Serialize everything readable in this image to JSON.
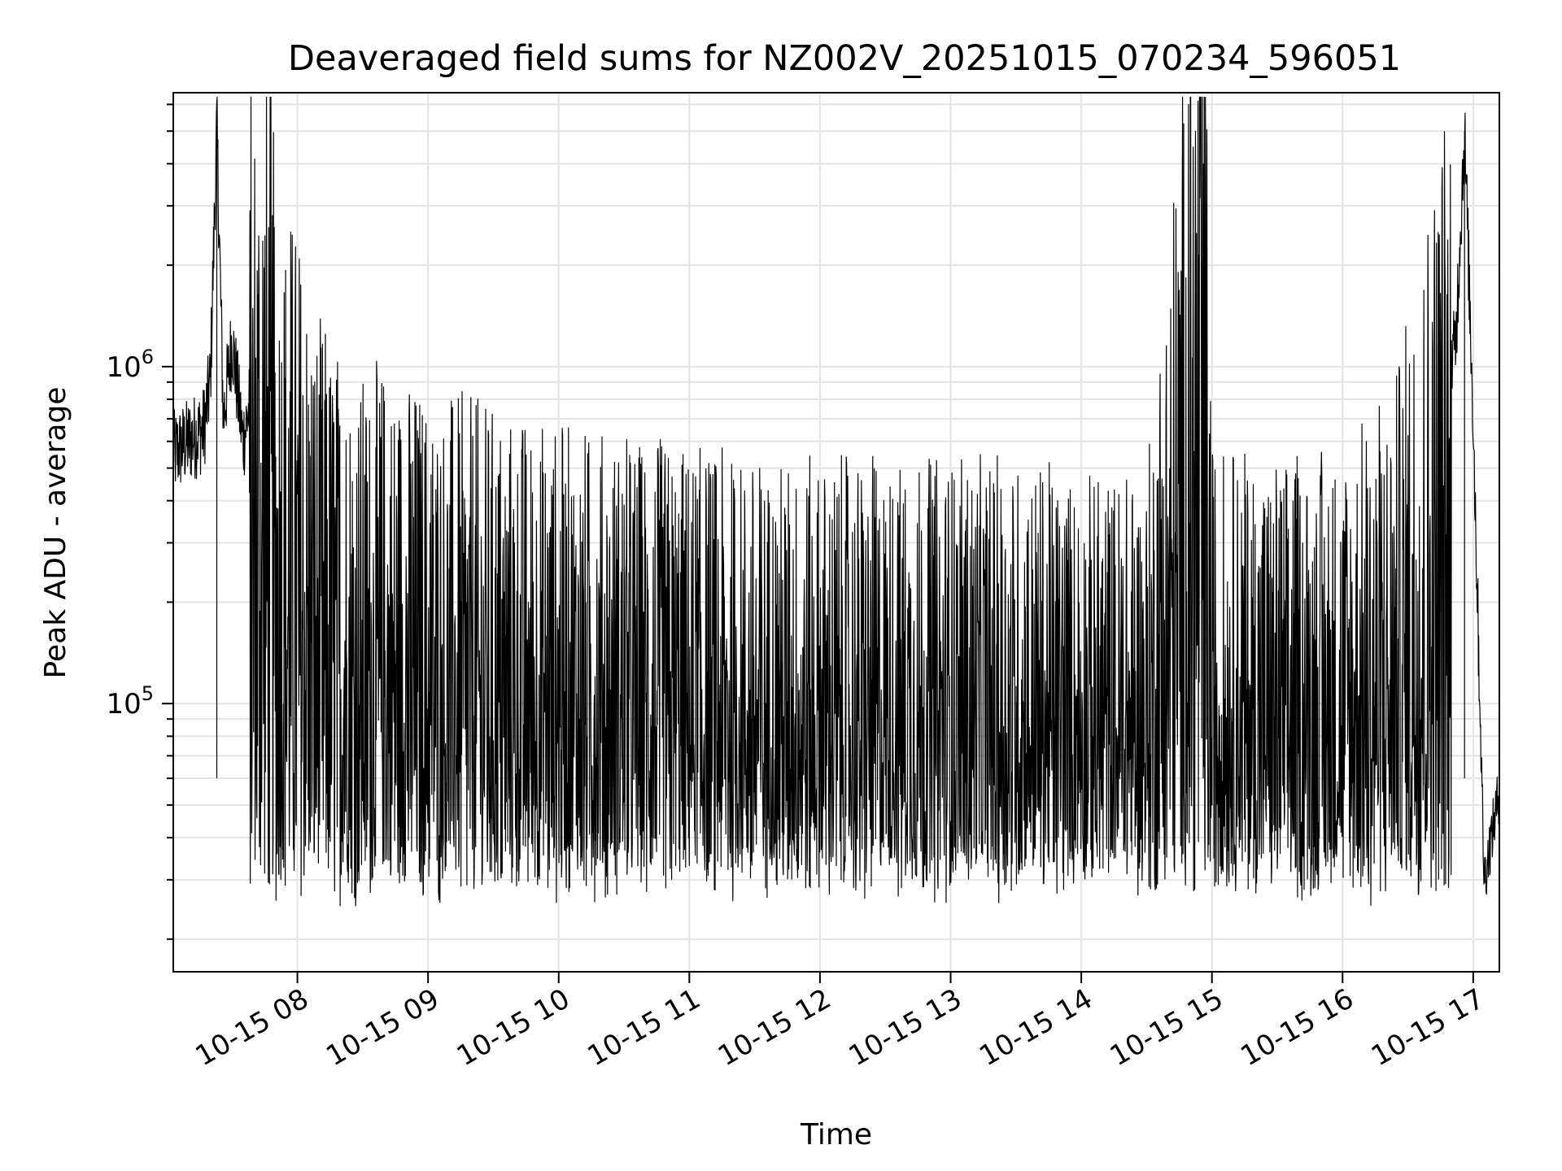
{
  "chart_data": {
    "type": "line",
    "title": "Deaveraged field sums for NZ002V_20251015_070234_596051",
    "xlabel": "Time",
    "ylabel": "Peak ADU - average",
    "yscale": "log",
    "ylim": [
      16000,
      6500000
    ],
    "xlim": [
      "2025-10-15 07:03",
      "2025-10-15 17:12"
    ],
    "grid": true,
    "line_color": "#000000",
    "x_ticks": [
      "10-15 08",
      "10-15 09",
      "10-15 10",
      "10-15 11",
      "10-15 12",
      "10-15 13",
      "10-15 14",
      "10-15 15",
      "10-15 16",
      "10-15 17"
    ],
    "y_ticks": [
      {
        "base": "10",
        "exp": "5",
        "value": 100000
      },
      {
        "base": "10",
        "exp": "6",
        "value": 1000000
      }
    ],
    "series": [
      {
        "x": [
          "2025-10-15 07:03",
          "2025-10-15 07:10",
          "2025-10-15 07:17",
          "2025-10-15 07:20",
          "2025-10-15 07:23",
          "2025-10-15 07:26",
          "2025-10-15 07:30",
          "2025-10-15 07:35",
          "2025-10-15 07:40",
          "2025-10-15 07:45",
          "2025-10-15 07:50",
          "2025-10-15 08:00",
          "2025-10-15 08:10",
          "2025-10-15 08:20",
          "2025-10-15 08:30",
          "2025-10-15 08:40",
          "2025-10-15 09:00",
          "2025-10-15 09:30",
          "2025-10-15 10:00",
          "2025-10-15 10:30",
          "2025-10-15 11:00",
          "2025-10-15 11:30",
          "2025-10-15 12:00",
          "2025-10-15 12:30",
          "2025-10-15 13:00",
          "2025-10-15 13:30",
          "2025-10-15 14:00",
          "2025-10-15 14:30",
          "2025-10-15 14:56",
          "2025-10-15 15:00",
          "2025-10-15 15:30",
          "2025-10-15 16:00",
          "2025-10-15 16:25",
          "2025-10-15 16:35",
          "2025-10-15 16:45",
          "2025-10-15 16:52",
          "2025-10-15 16:56",
          "2025-10-15 17:00",
          "2025-10-15 17:05",
          "2025-10-15 17:12"
        ],
        "y": [
          550000,
          600000,
          650000,
          900000,
          5200000,
          700000,
          1200000,
          600000,
          900000,
          1600000,
          400000,
          300000,
          150000,
          120000,
          100000,
          110000,
          90000,
          80000,
          70000,
          65000,
          60000,
          55000,
          55000,
          55000,
          55000,
          55000,
          50000,
          50000,
          4000000,
          60000,
          55000,
          60000,
          100000,
          250000,
          600000,
          1200000,
          5000000,
          700000,
          30000,
          55000
        ]
      }
    ]
  }
}
